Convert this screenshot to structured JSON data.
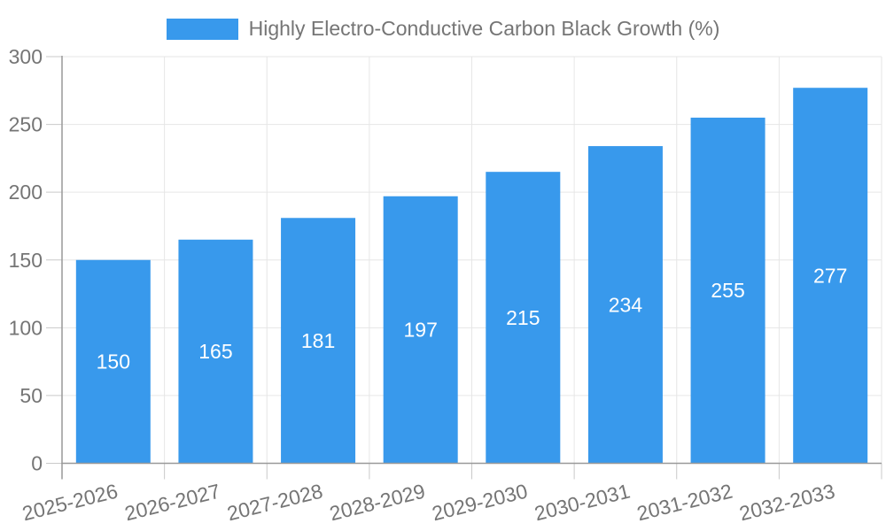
{
  "colors": {
    "bar": "#3899EC",
    "axis_line": "#999999",
    "gridline": "#E6E6E6",
    "tick": "#C9C9C9",
    "axis_text": "#757575",
    "value_label_text": "#FFFFFF",
    "background": "#FFFFFF"
  },
  "chart_data": {
    "type": "bar",
    "title": "",
    "legend": "Highly Electro-Conductive Carbon Black Growth (%)",
    "legend_position": "top-center",
    "categories": [
      "2025-2026",
      "2026-2027",
      "2027-2028",
      "2028-2029",
      "2029-2030",
      "2030-2031",
      "2031-2032",
      "2032-2033"
    ],
    "values": [
      150,
      165,
      181,
      197,
      215,
      234,
      255,
      277
    ],
    "value_labels_shown": true,
    "value_label_placement": "inside-middle",
    "xlabel": "",
    "ylabel": "",
    "ylim": [
      0,
      300
    ],
    "ytick_step": 50,
    "yticks": [
      0,
      50,
      100,
      150,
      200,
      250,
      300
    ],
    "grid": true,
    "x_tick_label_rotation_deg": -14
  }
}
